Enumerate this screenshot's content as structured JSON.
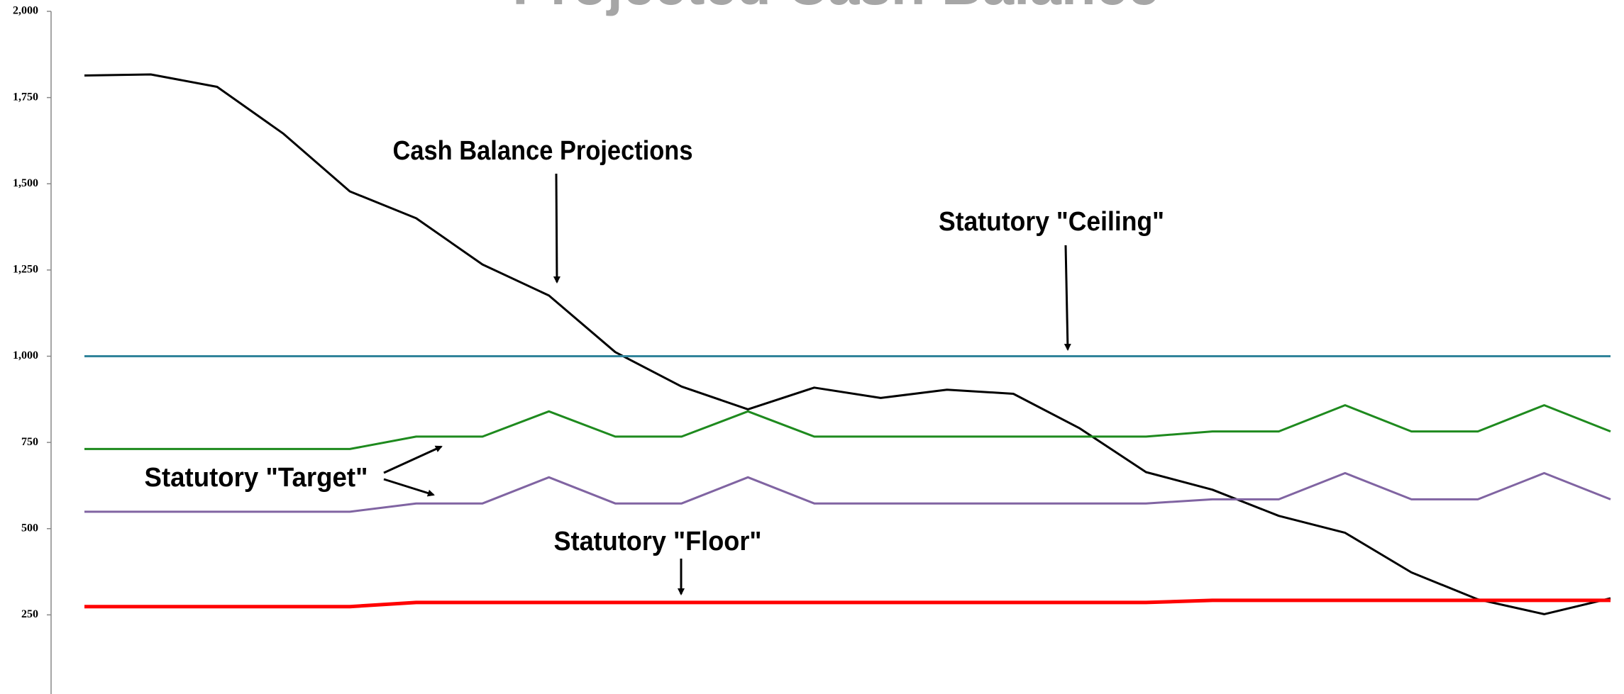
{
  "chart_data": {
    "type": "line",
    "title": "Projected Cash Balance",
    "categories": [
      null,
      null,
      null,
      null,
      null,
      null,
      null,
      null,
      null,
      null,
      null,
      null,
      null,
      null,
      null,
      null,
      null,
      null,
      null,
      null,
      null,
      null,
      null,
      null
    ],
    "series": [
      {
        "color": "#000000",
        "values": [
          1814,
          1817,
          1781,
          1645,
          1478,
          1400,
          1266,
          1176,
          1012,
          912,
          846,
          909,
          879,
          903,
          891,
          791,
          664,
          613,
          537,
          488,
          373,
          295,
          252,
          298
        ]
      },
      {
        "color": "#31849b",
        "values": [
          1000,
          1000,
          1000,
          1000,
          1000,
          1000,
          1000,
          1000,
          1000,
          1000,
          1000,
          1000,
          1000,
          1000,
          1000,
          1000,
          1000,
          1000,
          1000,
          1000,
          1000,
          1000,
          1000,
          1000
        ]
      },
      {
        "color": "#1e8a1e",
        "values": [
          731,
          731,
          731,
          731,
          731,
          767,
          767,
          840,
          767,
          767,
          840,
          767,
          767,
          767,
          767,
          767,
          767,
          782,
          782,
          858,
          782,
          782,
          858,
          782
        ]
      },
      {
        "color": "#8064a2",
        "values": [
          549,
          549,
          549,
          549,
          549,
          573,
          573,
          649,
          573,
          573,
          649,
          573,
          573,
          573,
          573,
          573,
          573,
          585,
          585,
          661,
          585,
          585,
          661,
          585
        ]
      },
      {
        "color": "#ff0000",
        "values": [
          274,
          274,
          274,
          274,
          274,
          286,
          286,
          286,
          286,
          286,
          286,
          286,
          286,
          286,
          286,
          286,
          286,
          292,
          292,
          292,
          292,
          292,
          292,
          292
        ]
      }
    ],
    "ylim": [
      0,
      2000
    ],
    "yticks": [
      250,
      500,
      750,
      {
        "value": 1000,
        "label": "1,000"
      },
      {
        "value": 1250,
        "label": "1,250"
      },
      {
        "value": 1500,
        "label": "1,500"
      },
      {
        "value": 1750,
        "label": "1,750"
      },
      {
        "value": 2000,
        "label": "2,000"
      }
    ],
    "annotations": [
      {
        "text": "Cash Balance Projections"
      },
      {
        "text": "Statutory \"Ceiling\""
      },
      {
        "text": "Statutory \"Target\""
      },
      {
        "text": "Statutory \"Floor\""
      }
    ]
  }
}
